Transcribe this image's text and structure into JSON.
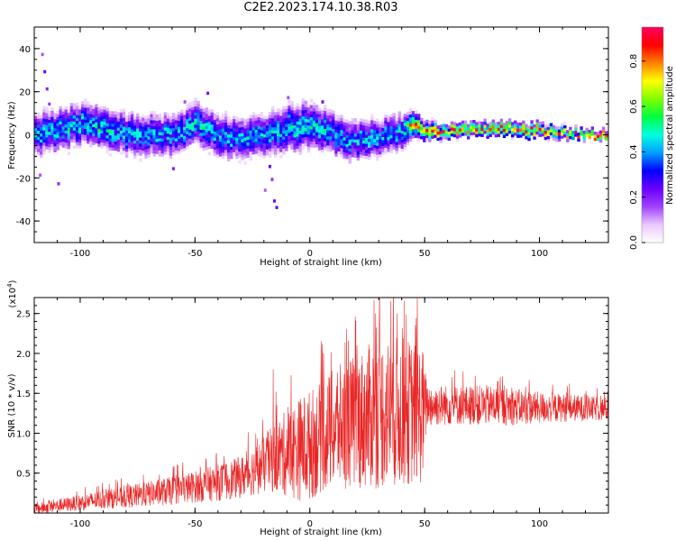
{
  "title": "C2E2.2023.174.10.38.R03",
  "colors": {
    "snr_line": "#e82626",
    "colorbar": [
      "#ffffff",
      "#e9c8ff",
      "#a040ff",
      "#6a00ff",
      "#0000ff",
      "#00a0ff",
      "#00ffe0",
      "#00ff40",
      "#80ff00",
      "#ffff00",
      "#ff8000",
      "#ff0000",
      "#ff0060"
    ]
  },
  "chart_data": [
    {
      "type": "heatmap",
      "xlabel": "Height of straight line (km)",
      "ylabel": "Frequency (Hz)",
      "xlim": [
        -120,
        130
      ],
      "ylim": [
        -50,
        50
      ],
      "xticks": [
        -100,
        -50,
        0,
        50,
        100
      ],
      "yticks": [
        -40,
        -20,
        0,
        20,
        40
      ],
      "xtick_labels": [
        "-100",
        "-50",
        "0",
        "50",
        "100"
      ],
      "ytick_labels": [
        "-40",
        "-20",
        "0",
        "20",
        "40"
      ],
      "colorbar": {
        "label": "Normalized spectral amplitude",
        "range": [
          0.0,
          0.95
        ],
        "ticks": [
          0.0,
          0.2,
          0.4,
          0.6,
          0.8
        ],
        "tick_labels": [
          "0.0",
          "0.2",
          "0.4",
          "0.6",
          "0.8"
        ]
      },
      "ridge": {
        "x": [
          -120,
          -110,
          -100,
          -90,
          -80,
          -70,
          -60,
          -50,
          -40,
          -30,
          -20,
          -10,
          0,
          10,
          20,
          30,
          40,
          44,
          50,
          60,
          70,
          80,
          90,
          100,
          110,
          120,
          130
        ],
        "center_hz": [
          0,
          2,
          5,
          3,
          0,
          0,
          -1,
          5,
          0,
          -3,
          0,
          3,
          4,
          0,
          -3,
          -1,
          1,
          5,
          2,
          1,
          2,
          3,
          2,
          2,
          1,
          0,
          0
        ],
        "spread_hz": [
          9,
          9,
          9,
          9,
          9,
          9,
          9,
          9,
          9,
          9,
          9,
          10,
          10,
          9,
          9,
          8,
          8,
          6,
          4,
          3,
          3,
          3,
          3,
          3,
          2.5,
          2,
          2
        ],
        "peak_amplitude": [
          0.45,
          0.45,
          0.5,
          0.5,
          0.45,
          0.45,
          0.45,
          0.5,
          0.45,
          0.45,
          0.45,
          0.5,
          0.5,
          0.45,
          0.45,
          0.45,
          0.45,
          0.85,
          0.9,
          0.9,
          0.9,
          0.9,
          0.9,
          0.9,
          0.9,
          0.95,
          0.95
        ]
      }
    },
    {
      "type": "line",
      "xlabel": "Height of straight line (km)",
      "ylabel": "SNR (10 * v/v)",
      "y_exponent": "(x10",
      "y_exponent_sup": "4",
      "y_exponent_close": ")",
      "xlim": [
        -120,
        130
      ],
      "ylim": [
        0,
        27000
      ],
      "xticks": [
        -100,
        -50,
        0,
        50,
        100
      ],
      "yticks": [
        5000,
        10000,
        15000,
        20000,
        25000
      ],
      "xtick_labels": [
        "-100",
        "-50",
        "0",
        "50",
        "100"
      ],
      "ytick_labels": [
        "0.5",
        "1.0",
        "1.5",
        "2.0",
        "2.5"
      ],
      "envelope": {
        "x": [
          -120,
          -110,
          -100,
          -90,
          -80,
          -70,
          -60,
          -50,
          -40,
          -30,
          -20,
          -15,
          -10,
          -5,
          0,
          5,
          10,
          15,
          20,
          25,
          30,
          35,
          40,
          45,
          49,
          51,
          60,
          70,
          80,
          90,
          100,
          110,
          120,
          130
        ],
        "mean": [
          500,
          900,
          1300,
          1700,
          2000,
          2400,
          2800,
          3300,
          3800,
          4500,
          6000,
          7000,
          7500,
          8000,
          8500,
          9500,
          10500,
          11000,
          11500,
          12000,
          12500,
          12700,
          12700,
          12500,
          12500,
          13500,
          13500,
          13500,
          13500,
          13300,
          13200,
          13200,
          13100,
          13000
        ],
        "spread": [
          700,
          800,
          1000,
          1200,
          1400,
          1600,
          1800,
          2000,
          2300,
          2600,
          3500,
          4500,
          5500,
          6500,
          7000,
          7000,
          7500,
          8000,
          8500,
          9000,
          9500,
          9500,
          9500,
          9000,
          9000,
          2800,
          2500,
          2500,
          2500,
          2300,
          2000,
          1800,
          1600,
          1500
        ],
        "peaks": [
          [
            28,
            26700
          ],
          [
            38,
            25000
          ],
          [
            46,
            23500
          ],
          [
            6,
            20000
          ],
          [
            -16,
            18000
          ],
          [
            12,
            17600
          ],
          [
            72,
            17200
          ],
          [
            82,
            16500
          ]
        ]
      }
    }
  ]
}
